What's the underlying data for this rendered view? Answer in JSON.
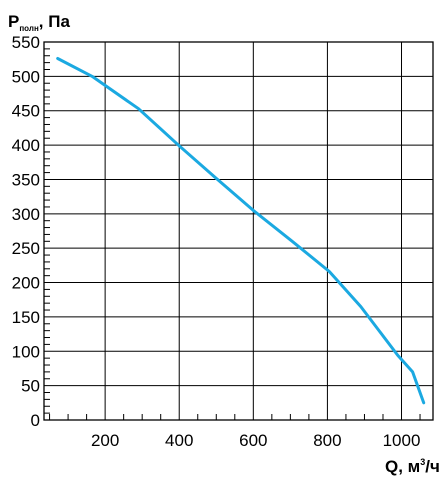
{
  "chart_data": {
    "type": "line",
    "ylabel": {
      "main": "P",
      "sub": "полн",
      "rest": ", Па"
    },
    "xlabel": {
      "main": "Q, м",
      "sup": "3",
      "rest": "/ч"
    },
    "xlim": [
      35,
      1085
    ],
    "ylim": [
      0,
      550
    ],
    "x_ticks": [
      200,
      400,
      600,
      800,
      1000
    ],
    "y_ticks": [
      0,
      50,
      100,
      150,
      200,
      250,
      300,
      350,
      400,
      450,
      500,
      550
    ],
    "x_minor_step": 50,
    "y_minor_step": 10,
    "grid": true,
    "colors": {
      "line": "#1ba9e1",
      "grid": "#000000"
    },
    "series": [
      {
        "points": [
          [
            72,
            526
          ],
          [
            165,
            500
          ],
          [
            290,
            453
          ],
          [
            400,
            399
          ],
          [
            495,
            354
          ],
          [
            600,
            305
          ],
          [
            705,
            260
          ],
          [
            805,
            216
          ],
          [
            890,
            165
          ],
          [
            990,
            94
          ],
          [
            1030,
            70
          ],
          [
            1060,
            25
          ]
        ]
      }
    ]
  }
}
